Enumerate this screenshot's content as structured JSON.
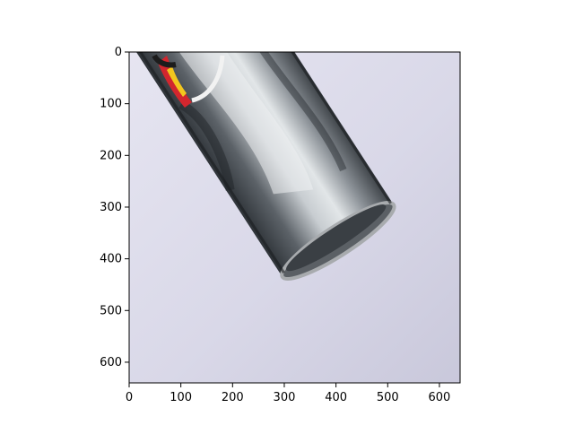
{
  "figure": {
    "x_ticks": [
      "0",
      "100",
      "200",
      "300",
      "400",
      "500",
      "600"
    ],
    "y_ticks": [
      "0",
      "100",
      "200",
      "300",
      "400",
      "500",
      "600"
    ],
    "x_range": [
      0,
      640
    ],
    "y_range": [
      640,
      0
    ],
    "colors": {
      "background": "#dcdbe9",
      "can_body": "#3d4247",
      "can_highlight": "#d9dde0",
      "can_rim": "#9da0a4",
      "logo_red": "#d2262e",
      "logo_yellow": "#f3c61e"
    }
  }
}
